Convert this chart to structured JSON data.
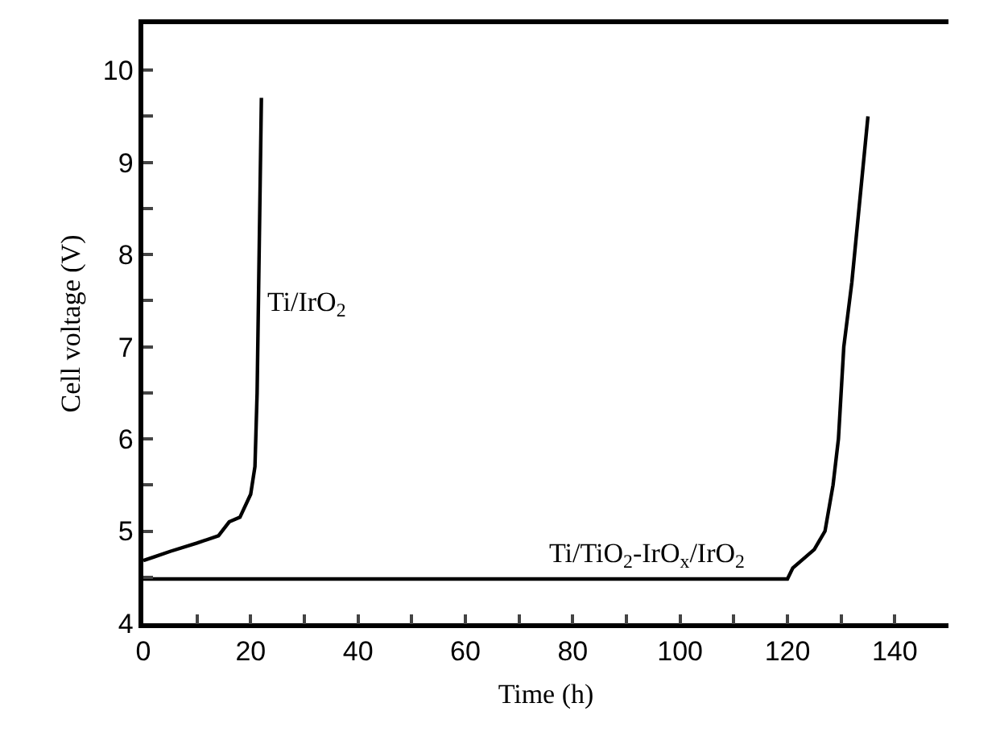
{
  "chart_data": {
    "type": "line",
    "xlabel": "Time (h)",
    "ylabel": "Cell voltage (V)",
    "xlim": [
      0,
      150
    ],
    "xticks": [
      0,
      {
        "value": 10,
        "label": null
      },
      20,
      {
        "value": 30,
        "label": null
      },
      40,
      {
        "value": 50,
        "label": null
      },
      60,
      {
        "value": 70,
        "label": null
      },
      80,
      {
        "value": 90,
        "label": null
      },
      100,
      {
        "value": 110,
        "label": null
      },
      120,
      {
        "value": 130,
        "label": null
      },
      140
    ],
    "ylim": [
      4,
      10.5
    ],
    "yticks": [
      4,
      {
        "value": 4.5,
        "label": null
      },
      5,
      {
        "value": 5.5,
        "label": null
      },
      6,
      {
        "value": 6.5,
        "label": null
      },
      7,
      {
        "value": 7.5,
        "label": null
      },
      8,
      {
        "value": 8.5,
        "label": null
      },
      9,
      {
        "value": 9.5,
        "label": null
      },
      10
    ],
    "grid": false,
    "marker": "none",
    "line_style": "solid",
    "series": [
      {
        "color": "#000000",
        "x": [
          0,
          2,
          5,
          10,
          14,
          16,
          18,
          20,
          20.8,
          21.2,
          22
        ],
        "values": [
          4.68,
          4.72,
          4.78,
          4.87,
          4.95,
          5.1,
          5.15,
          5.4,
          5.7,
          6.5,
          9.7
        ]
      },
      {
        "color": "#000000",
        "x": [
          0,
          60,
          120,
          121,
          123,
          125,
          127,
          128.5,
          129.5,
          130.5,
          132,
          135
        ],
        "values": [
          4.48,
          4.48,
          4.48,
          4.6,
          4.7,
          4.8,
          5.0,
          5.5,
          6.0,
          7.0,
          7.7,
          9.5
        ]
      }
    ],
    "annotations": [
      {
        "text": "Ti/IrO$_{2}$",
        "x": 22.5,
        "y": 7.2
      },
      {
        "text": "Ti/TiO$_{2}$-IrO$_{x}$/IrO$_{2}$",
        "x": 75,
        "y": 4.48
      }
    ]
  }
}
